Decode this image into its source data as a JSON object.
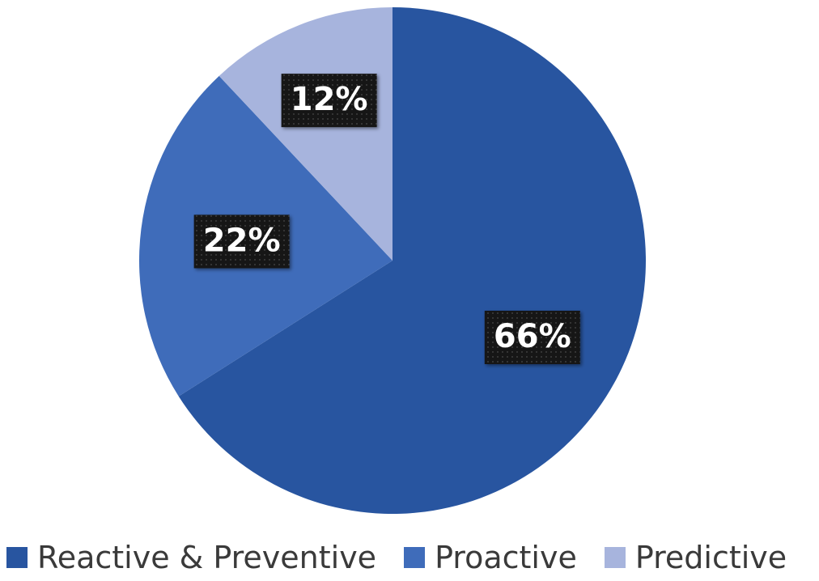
{
  "chart_data": {
    "type": "pie",
    "categories": [
      "Reactive & Preventive",
      "Proactive",
      "Predictive"
    ],
    "values": [
      66,
      22,
      12
    ],
    "data_labels": [
      "66%",
      "22%",
      "12%"
    ],
    "colors": [
      "#2855a0",
      "#3f6cba",
      "#a7b4dd"
    ],
    "title": "",
    "legend_position": "bottom",
    "start": "12 o'clock",
    "direction": "clockwise"
  },
  "legend": {
    "items": [
      {
        "label": "Reactive & Preventive",
        "color": "#2855a0"
      },
      {
        "label": "Proactive",
        "color": "#3f6cba"
      },
      {
        "label": "Predictive",
        "color": "#a7b4dd"
      }
    ]
  }
}
